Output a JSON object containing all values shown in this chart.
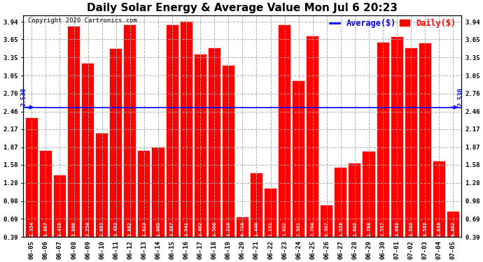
{
  "title": "Daily Solar Energy & Average Value Mon Jul 6 20:23",
  "copyright": "Copyright 2020 Cartronics.com",
  "average_label": "Average($)",
  "daily_label": "Daily($)",
  "average_value": 2.53,
  "categories": [
    "06-05",
    "06-06",
    "06-07",
    "06-08",
    "06-09",
    "06-10",
    "06-11",
    "06-12",
    "06-13",
    "06-14",
    "06-15",
    "06-16",
    "06-17",
    "06-18",
    "06-19",
    "06-20",
    "06-21",
    "06-22",
    "06-23",
    "06-24",
    "06-25",
    "06-26",
    "06-27",
    "06-28",
    "06-29",
    "06-30",
    "07-01",
    "07-02",
    "07-03",
    "07-04",
    "07-05"
  ],
  "values": [
    2.354,
    1.807,
    1.41,
    3.86,
    3.254,
    2.093,
    3.493,
    3.882,
    1.813,
    1.865,
    3.887,
    3.941,
    3.402,
    3.506,
    3.216,
    0.716,
    1.44,
    1.191,
    3.882,
    2.961,
    3.704,
    0.907,
    1.528,
    1.603,
    1.798,
    3.597,
    3.693,
    3.503,
    3.583,
    1.639,
    0.802
  ],
  "bar_color": "#ff0000",
  "bar_edge_color": "#ff0000",
  "average_line_color": "#0000ff",
  "average_text_color": "#0000ff",
  "background_color": "#ffffff",
  "grid_color": "#aaaaaa",
  "title_color": "#000000",
  "yticks": [
    0.39,
    0.69,
    0.98,
    1.28,
    1.58,
    1.87,
    2.17,
    2.46,
    2.76,
    3.05,
    3.35,
    3.65,
    3.94
  ],
  "ymin": 0.39,
  "ymax": 4.05,
  "value_fontsize": 5.0,
  "tick_fontsize": 6.5,
  "title_fontsize": 11,
  "copyright_fontsize": 6.5,
  "legend_fontsize": 8.5
}
